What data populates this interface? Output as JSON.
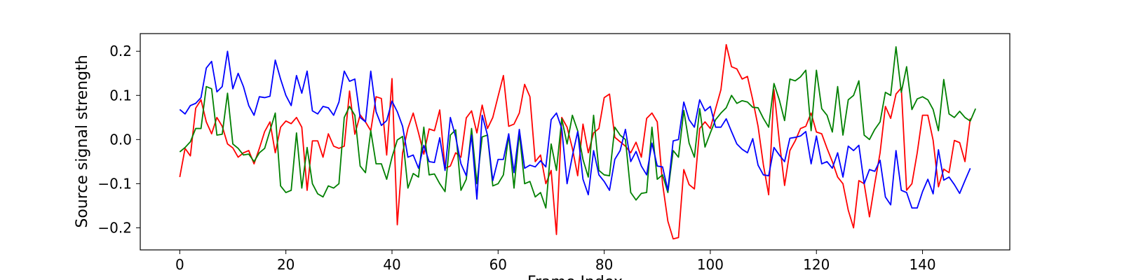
{
  "chart_data": {
    "type": "line",
    "title": "",
    "xlabel": "Frame Index",
    "ylabel": "Source signal strength",
    "xlim": [
      -7.45,
      156.45
    ],
    "ylim": [
      -0.25,
      0.24
    ],
    "xticks": [
      0,
      20,
      40,
      60,
      80,
      100,
      120,
      140
    ],
    "yticks": [
      -0.2,
      -0.1,
      0.0,
      0.1,
      0.2
    ],
    "xtick_labels": [
      "0",
      "20",
      "40",
      "60",
      "80",
      "100",
      "120",
      "140"
    ],
    "ytick_labels": [
      "−0.2",
      "−0.1",
      "0.0",
      "0.1",
      "0.2"
    ],
    "grid": false,
    "legend": "none",
    "series": [
      {
        "color": "#ff0000",
        "values": [
          -0.085,
          -0.02,
          -0.037,
          0.071,
          0.09,
          0.04,
          0.013,
          0.05,
          0.03,
          -0.01,
          -0.019,
          -0.04,
          -0.03,
          -0.025,
          -0.055,
          -0.02,
          0.018,
          0.04,
          -0.03,
          0.028,
          0.042,
          0.036,
          0.05,
          0.028,
          -0.115,
          -0.003,
          -0.003,
          -0.04,
          0.013,
          -0.015,
          -0.02,
          -0.015,
          0.11,
          0.012,
          0.056,
          0.04,
          0.02,
          0.097,
          0.093,
          -0.035,
          0.138,
          -0.193,
          -0.03,
          0.025,
          0.06,
          0.015,
          -0.033,
          0.024,
          0.02,
          0.067,
          -0.065,
          -0.06,
          -0.03,
          -0.04,
          0.049,
          0.065,
          0.015,
          0.078,
          0.025,
          0.05,
          0.098,
          0.145,
          0.03,
          0.035,
          0.06,
          0.125,
          0.097,
          -0.05,
          -0.035,
          -0.1,
          -0.07,
          -0.215,
          0.05,
          0.028,
          -0.02,
          -0.082,
          0.035,
          -0.03,
          0.015,
          0.025,
          0.095,
          0.103,
          0.005,
          -0.005,
          -0.015,
          -0.03,
          -0.006,
          -0.04,
          0.048,
          0.06,
          0.04,
          -0.1,
          -0.185,
          -0.225,
          -0.222,
          -0.068,
          -0.102,
          -0.112,
          0.025,
          0.04,
          0.025,
          0.07,
          0.113,
          0.215,
          0.165,
          0.16,
          0.137,
          0.143,
          0.09,
          0.03,
          -0.057,
          -0.125,
          0.113,
          -0.003,
          -0.104,
          -0.025,
          -0.003,
          0.025,
          0.03,
          0.06,
          0.017,
          0.013,
          -0.02,
          -0.05,
          -0.085,
          -0.1,
          -0.16,
          -0.2,
          -0.093,
          -0.1,
          -0.175,
          -0.1,
          -0.03,
          0.075,
          0.048,
          0.103,
          0.117,
          -0.115,
          -0.1,
          -0.03,
          0.055,
          0.055,
          -0.002,
          -0.107,
          -0.067,
          -0.075,
          -0.002,
          -0.007,
          -0.05,
          0.048
        ]
      },
      {
        "color": "#008000",
        "values": [
          -0.028,
          -0.018,
          -0.005,
          0.025,
          0.025,
          0.12,
          0.115,
          0.01,
          0.012,
          0.105,
          -0.01,
          -0.02,
          -0.035,
          -0.033,
          -0.05,
          -0.03,
          -0.02,
          0.02,
          0.06,
          -0.105,
          -0.12,
          -0.115,
          0.015,
          -0.11,
          -0.018,
          -0.1,
          -0.123,
          -0.13,
          -0.105,
          -0.11,
          -0.1,
          0.05,
          0.075,
          0.055,
          -0.06,
          -0.075,
          0.02,
          -0.055,
          -0.055,
          -0.09,
          -0.04,
          -0.001,
          0.007,
          -0.11,
          -0.077,
          -0.085,
          0.028,
          -0.08,
          -0.078,
          -0.1,
          -0.118,
          0.01,
          0.022,
          -0.115,
          -0.09,
          0.025,
          -0.1,
          0.006,
          0.01,
          -0.105,
          -0.1,
          -0.08,
          0.01,
          -0.11,
          0.015,
          -0.1,
          -0.095,
          -0.13,
          -0.12,
          -0.155,
          -0.01,
          -0.07,
          0.047,
          -0.01,
          0.055,
          0.02,
          -0.045,
          -0.085,
          0.055,
          -0.07,
          -0.08,
          -0.082,
          0.028,
          0.01,
          0.0,
          -0.12,
          -0.137,
          -0.122,
          -0.12,
          0.028,
          -0.09,
          -0.08,
          -0.12,
          -0.025,
          -0.04,
          0.066,
          -0.008,
          -0.04,
          0.07,
          -0.017,
          0.015,
          0.045,
          0.06,
          0.072,
          0.1,
          0.082,
          0.088,
          0.085,
          0.073,
          0.072,
          0.048,
          0.028,
          0.127,
          0.09,
          0.043,
          0.137,
          0.133,
          0.142,
          0.157,
          0.02,
          0.157,
          0.07,
          0.055,
          0.017,
          0.12,
          0.01,
          0.09,
          0.1,
          0.133,
          0.01,
          0.0,
          0.023,
          0.04,
          0.107,
          0.1,
          0.21,
          0.107,
          0.165,
          0.068,
          0.092,
          0.097,
          0.09,
          0.068,
          0.02,
          0.136,
          0.058,
          0.05,
          0.064,
          0.05,
          0.042,
          0.07
        ]
      },
      {
        "color": "#0000ff",
        "values": [
          0.068,
          0.058,
          0.077,
          0.082,
          0.095,
          0.162,
          0.177,
          0.108,
          0.12,
          0.2,
          0.115,
          0.15,
          0.12,
          0.077,
          0.055,
          0.097,
          0.095,
          0.098,
          0.18,
          0.137,
          0.1,
          0.077,
          0.145,
          0.105,
          0.155,
          0.065,
          0.058,
          0.075,
          0.072,
          0.055,
          0.085,
          0.155,
          0.132,
          0.137,
          0.05,
          0.04,
          0.155,
          0.063,
          0.032,
          0.043,
          0.087,
          0.063,
          0.03,
          -0.04,
          -0.035,
          -0.065,
          -0.013,
          -0.05,
          -0.052,
          0.004,
          -0.07,
          0.05,
          0.006,
          -0.055,
          -0.082,
          0.01,
          -0.135,
          0.055,
          0.01,
          -0.093,
          -0.045,
          -0.045,
          0.013,
          -0.075,
          0.023,
          -0.065,
          -0.058,
          -0.062,
          -0.048,
          -0.062,
          0.045,
          0.06,
          0.025,
          -0.1,
          -0.037,
          0.018,
          -0.09,
          -0.125,
          -0.025,
          -0.08,
          -0.095,
          -0.115,
          -0.045,
          -0.025,
          0.023,
          -0.05,
          -0.027,
          -0.06,
          -0.08,
          -0.008,
          -0.06,
          -0.062,
          -0.115,
          -0.003,
          0.0,
          0.085,
          0.045,
          0.028,
          0.09,
          0.065,
          0.075,
          0.028,
          0.028,
          0.047,
          0.018,
          -0.01,
          -0.022,
          -0.03,
          0.002,
          -0.058,
          -0.08,
          -0.082,
          -0.018,
          -0.035,
          -0.05,
          0.003,
          0.005,
          0.008,
          0.018,
          -0.055,
          0.008,
          -0.055,
          -0.05,
          -0.065,
          -0.03,
          -0.085,
          -0.015,
          -0.025,
          -0.013,
          -0.1,
          -0.068,
          -0.072,
          -0.047,
          -0.13,
          -0.148,
          -0.025,
          -0.115,
          -0.12,
          -0.155,
          -0.155,
          -0.118,
          -0.09,
          -0.123,
          -0.023,
          -0.092,
          -0.085,
          -0.102,
          -0.122,
          -0.093,
          -0.065
        ]
      }
    ]
  }
}
